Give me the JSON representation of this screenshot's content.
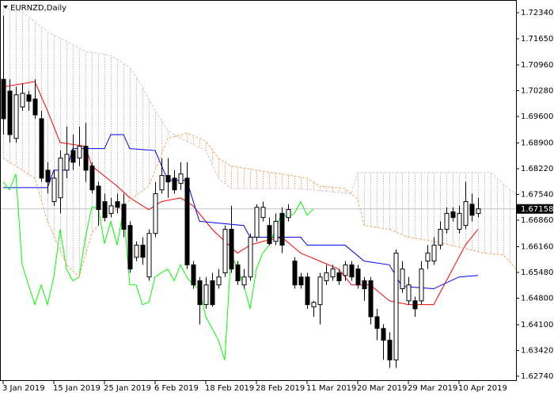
{
  "chart_data": {
    "type": "candlestick",
    "title": "EURNZD,Daily",
    "categories": [
      "3 Jan 2019",
      null,
      null,
      null,
      null,
      null,
      null,
      null,
      "15 Jan 2019",
      null,
      null,
      null,
      null,
      null,
      null,
      null,
      "25 Jan 2019",
      null,
      null,
      null,
      null,
      null,
      null,
      null,
      "6 Feb 2019",
      null,
      null,
      null,
      null,
      null,
      null,
      null,
      "18 Feb 2019",
      null,
      null,
      null,
      null,
      null,
      null,
      null,
      "28 Feb 2019",
      null,
      null,
      null,
      null,
      null,
      null,
      null,
      "11 Mar 2019",
      null,
      null,
      null,
      null,
      null,
      null,
      null,
      "20 Mar 2019",
      null,
      null,
      null,
      null,
      null,
      null,
      null,
      "29 Mar 2019",
      null,
      null,
      null,
      null,
      null,
      null,
      null,
      "10 Apr 2019",
      null,
      null,
      null
    ],
    "ohlc": {
      "open": [
        1.7058,
        1.7027,
        1.6902,
        1.6985,
        1.7017,
        1.7006,
        1.6954,
        1.6818,
        1.6735,
        1.6745,
        1.6818,
        1.687,
        1.685,
        1.6881,
        1.6829,
        1.6776,
        1.6735,
        1.6704,
        1.6735,
        1.6728,
        1.6672,
        1.6588,
        1.662,
        1.6536,
        1.6651,
        1.6766,
        1.6804,
        1.6797,
        1.6783,
        1.6797,
        1.6568,
        1.6526,
        1.6463,
        1.6526,
        1.6515,
        1.6547,
        1.6662,
        1.6568,
        1.6515,
        1.6536,
        1.6641,
        1.6693,
        1.6672,
        1.663,
        1.6704,
        1.6693,
        1.6578,
        1.6536,
        1.6536,
        1.6457,
        1.6463,
        1.6526,
        1.6536,
        1.6547,
        1.654,
        1.6568,
        1.6557,
        1.6526,
        1.6526,
        1.6431,
        1.64,
        1.6369,
        1.6317,
        1.6505,
        1.6473,
        1.6473,
        1.6473,
        1.6578,
        1.6578,
        1.662,
        1.6662,
        1.6708,
        1.6662,
        1.6672,
        1.6728,
        1.6704
      ],
      "high": [
        1.7226,
        1.7058,
        1.7038,
        1.7048,
        1.7027,
        1.7058,
        1.6975,
        1.6839,
        1.6818,
        1.687,
        1.6933,
        1.6912,
        1.6933,
        1.6943,
        1.6839,
        1.6787,
        1.6756,
        1.6745,
        1.6756,
        1.6756,
        1.6683,
        1.663,
        1.6641,
        1.6662,
        1.6787,
        1.685,
        1.685,
        1.6818,
        1.6839,
        1.6839,
        1.6578,
        1.6536,
        1.6536,
        1.6547,
        1.6557,
        1.6672,
        1.6724,
        1.6578,
        1.6557,
        1.6651,
        1.6728,
        1.6735,
        1.6693,
        1.6704,
        1.672,
        1.6728,
        1.6588,
        1.6547,
        1.6547,
        1.6473,
        1.6547,
        1.6568,
        1.6568,
        1.6557,
        1.6578,
        1.6578,
        1.6568,
        1.6536,
        1.6536,
        1.6452,
        1.6411,
        1.639,
        1.6609,
        1.6578,
        1.6536,
        1.6484,
        1.6578,
        1.662,
        1.6641,
        1.6683,
        1.672,
        1.672,
        1.6724,
        1.6787,
        1.6756,
        1.6745
      ],
      "low": [
        1.6912,
        1.6891,
        1.6891,
        1.6975,
        1.6975,
        1.6954,
        1.6787,
        1.6756,
        1.6724,
        1.6704,
        1.6797,
        1.6818,
        1.6829,
        1.6787,
        1.6756,
        1.6672,
        1.6683,
        1.6693,
        1.6704,
        1.6641,
        1.6547,
        1.6578,
        1.6568,
        1.6526,
        1.6641,
        1.6756,
        1.6745,
        1.6756,
        1.6766,
        1.6557,
        1.6505,
        1.6411,
        1.6452,
        1.6457,
        1.6505,
        1.6536,
        1.6547,
        1.6515,
        1.6505,
        1.6526,
        1.663,
        1.6683,
        1.662,
        1.662,
        1.6599,
        1.6683,
        1.6505,
        1.6505,
        1.6452,
        1.6431,
        1.6411,
        1.6515,
        1.6526,
        1.6515,
        1.6526,
        1.6526,
        1.6505,
        1.6473,
        1.6411,
        1.6369,
        1.6317,
        1.6296,
        1.6296,
        1.6494,
        1.6463,
        1.6431,
        1.6463,
        1.6557,
        1.6568,
        1.6609,
        1.6651,
        1.6683,
        1.6651,
        1.6662,
        1.6683,
        1.6693
      ],
      "close": [
        1.6954,
        1.6912,
        1.7017,
        1.7021,
        1.7,
        1.6964,
        1.6797,
        1.6787,
        1.6797,
        1.685,
        1.686,
        1.6839,
        1.6881,
        1.6818,
        1.6766,
        1.6714,
        1.6693,
        1.6724,
        1.672,
        1.6662,
        1.6557,
        1.662,
        1.6588,
        1.6651,
        1.6756,
        1.6804,
        1.6787,
        1.6766,
        1.6808,
        1.6568,
        1.6515,
        1.6463,
        1.6515,
        1.6463,
        1.6536,
        1.6662,
        1.6557,
        1.6526,
        1.6536,
        1.6641,
        1.672,
        1.672,
        1.6624,
        1.6683,
        1.662,
        1.6714,
        1.6515,
        1.6515,
        1.6463,
        1.6469,
        1.6536,
        1.6547,
        1.6557,
        1.6526,
        1.6568,
        1.6536,
        1.6515,
        1.6505,
        1.6431,
        1.64,
        1.6369,
        1.6317,
        1.6599,
        1.6557,
        1.6515,
        1.6452,
        1.6557,
        1.6599,
        1.662,
        1.6662,
        1.6704,
        1.6693,
        1.6704,
        1.6735,
        1.6699,
        1.67158
      ]
    },
    "bull_color": "#ffffff",
    "bear_color": "#000000",
    "series": [
      {
        "color": "#ff0000",
        "style": "solid",
        "x": [
          0,
          5,
          7,
          9,
          13,
          14,
          18,
          20,
          23,
          25,
          28,
          30,
          33,
          37,
          39,
          41,
          44,
          47,
          50,
          53,
          55,
          58,
          61,
          64,
          68,
          70,
          73,
          75
        ],
        "values": [
          1.7038,
          1.7052,
          1.6975,
          1.6891,
          1.6881,
          1.6829,
          1.6776,
          1.6745,
          1.6714,
          1.6735,
          1.6745,
          1.6724,
          1.6662,
          1.6599,
          1.662,
          1.663,
          1.6641,
          1.6599,
          1.6578,
          1.6557,
          1.6515,
          1.6515,
          1.6473,
          1.6463,
          1.6463,
          1.6526,
          1.662,
          1.6662
        ]
      },
      {
        "color": "#0000ff",
        "style": "solid",
        "x": [
          0,
          7,
          8,
          10,
          11,
          16,
          17,
          19,
          20,
          24,
          26,
          29,
          31,
          38,
          39,
          47,
          48,
          54,
          57,
          61,
          63,
          68,
          72,
          75
        ],
        "values": [
          1.6772,
          1.6772,
          1.6818,
          1.6818,
          1.6875,
          1.6875,
          1.6912,
          1.6912,
          1.6875,
          1.687,
          1.6791,
          1.6791,
          1.6683,
          1.6672,
          1.6641,
          1.6641,
          1.662,
          1.662,
          1.6578,
          1.6568,
          1.6511,
          1.6505,
          1.6536,
          1.654
        ]
      },
      {
        "color": "#00ff00",
        "style": "solid",
        "x": [
          0,
          1,
          2,
          3,
          4,
          5,
          6,
          7,
          8,
          9,
          10,
          11,
          12,
          13,
          14,
          15,
          16,
          17,
          18,
          19,
          20,
          21,
          22,
          23,
          24,
          25,
          26,
          27,
          28,
          29,
          30,
          31,
          32,
          33,
          34,
          35,
          36,
          37,
          38,
          39,
          40,
          41,
          42,
          43,
          44,
          45,
          46,
          47,
          48,
          49
        ],
        "values": [
          1.6787,
          1.6766,
          1.6808,
          1.6568,
          1.6515,
          1.6463,
          1.6515,
          1.6463,
          1.6536,
          1.6662,
          1.6557,
          1.6526,
          1.6536,
          1.6641,
          1.672,
          1.672,
          1.6624,
          1.6683,
          1.662,
          1.6714,
          1.6515,
          1.6515,
          1.6463,
          1.6469,
          1.6536,
          1.6547,
          1.6557,
          1.6526,
          1.6568,
          1.6536,
          1.6515,
          1.6505,
          1.6431,
          1.64,
          1.6369,
          1.6317,
          1.6599,
          1.6557,
          1.6515,
          1.6452,
          1.6557,
          1.6599,
          1.662,
          1.6662,
          1.6704,
          1.6693,
          1.6704,
          1.6735,
          1.6699,
          1.67158
        ]
      },
      {
        "color": "#f4a460",
        "style": "dashed",
        "x": [
          0,
          5,
          7,
          10,
          12,
          14,
          16,
          18,
          23,
          26,
          29,
          32,
          34,
          36,
          40,
          44,
          48,
          50,
          54,
          56,
          57,
          61,
          64,
          68,
          72,
          76,
          79,
          81
        ],
        "values": [
          1.685,
          1.6797,
          1.6683,
          1.6568,
          1.6536,
          1.6651,
          1.6693,
          1.6714,
          1.6776,
          1.6902,
          1.6916,
          1.6895,
          1.685,
          1.6829,
          1.6818,
          1.6808,
          1.6797,
          1.6776,
          1.677,
          1.6741,
          1.6672,
          1.6662,
          1.6641,
          1.663,
          1.6615,
          1.6599,
          1.6595,
          1.6557
        ]
      },
      {
        "color": "#d8bfd8",
        "style": "dashed",
        "x": [
          0,
          3,
          7,
          13,
          17,
          20,
          22,
          24,
          26,
          28,
          32,
          34,
          36,
          46,
          55,
          56,
          77,
          80,
          81
        ],
        "values": [
          1.7247,
          1.7236,
          1.7184,
          1.7132,
          1.7121,
          1.709,
          1.7038,
          1.6975,
          1.6923,
          1.6902,
          1.687,
          1.6797,
          1.677,
          1.677,
          1.6756,
          1.6812,
          1.6812,
          1.6766,
          1.6756
        ]
      }
    ],
    "kumo_colors": [
      "#f4a460",
      "#c8b4c8"
    ],
    "last_price": 1.67158,
    "last_price_line_color": "#c0c0c0",
    "ylim": [
      1.62635,
      1.72675
    ],
    "yticks": [
      {
        "value": 1.7234,
        "label": "1.72340"
      },
      {
        "value": 1.7165,
        "label": "1.71650"
      },
      {
        "value": 1.7096,
        "label": "1.70960"
      },
      {
        "value": 1.7028,
        "label": "1.70280"
      },
      {
        "value": 1.696,
        "label": "1.69600"
      },
      {
        "value": 1.689,
        "label": "1.68900"
      },
      {
        "value": 1.6822,
        "label": "1.68220"
      },
      {
        "value": 1.6754,
        "label": "1.67540"
      },
      {
        "value": 1.6686,
        "label": "1.66860"
      },
      {
        "value": 1.6616,
        "label": "1.66160"
      },
      {
        "value": 1.6548,
        "label": "1.65480"
      },
      {
        "value": 1.648,
        "label": "1.64800"
      },
      {
        "value": 1.641,
        "label": "1.64100"
      },
      {
        "value": 1.6342,
        "label": "1.63420"
      },
      {
        "value": 1.6274,
        "label": "1.62740"
      }
    ],
    "grid": false
  }
}
